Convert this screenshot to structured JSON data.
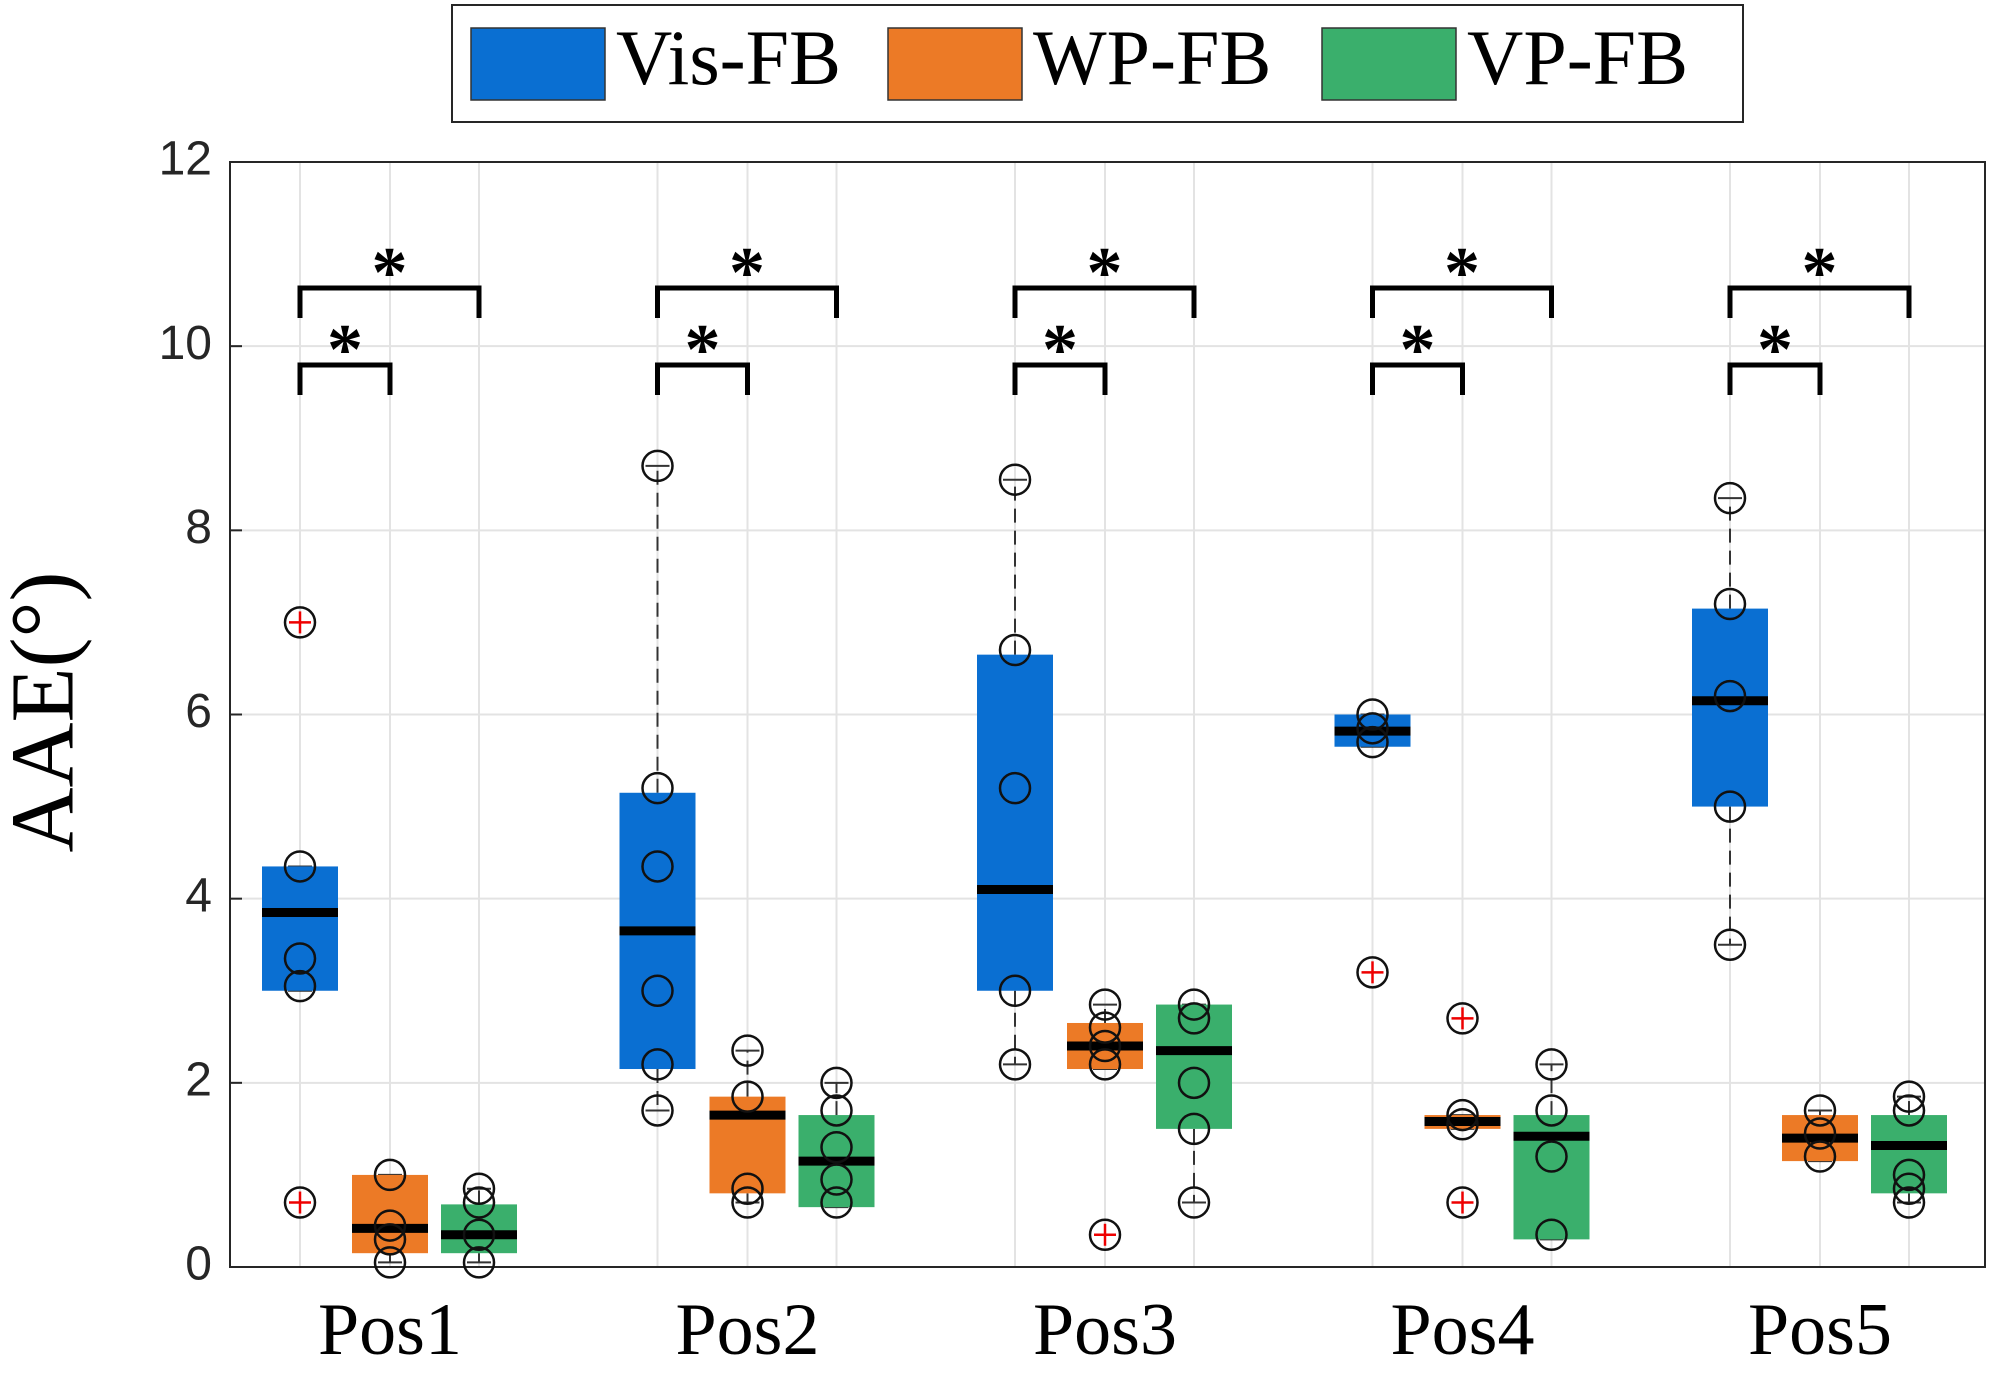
{
  "chart_data": {
    "type": "box",
    "ylabel": "AAE(°)",
    "categories": [
      "Pos1",
      "Pos2",
      "Pos3",
      "Pos4",
      "Pos5"
    ],
    "ylim": [
      0,
      12
    ],
    "yticks": [
      0,
      2,
      4,
      6,
      8,
      10,
      12
    ],
    "grid": true,
    "legend": "top",
    "series": [
      {
        "name": "Vis-FB",
        "color": "#0a6fd2",
        "boxes": [
          {
            "whislo": 3.0,
            "q1": 3.0,
            "median": 3.85,
            "q3": 4.35,
            "whishi": 4.35,
            "outliers": [
              7.0,
              0.7
            ],
            "points": [
              4.35,
              3.35,
              3.05
            ]
          },
          {
            "whislo": 1.7,
            "q1": 2.15,
            "median": 3.65,
            "q3": 5.15,
            "whishi": 8.7,
            "outliers": [],
            "points": [
              8.7,
              5.2,
              4.35,
              3.0,
              2.2,
              1.7
            ]
          },
          {
            "whislo": 2.2,
            "q1": 3.0,
            "median": 4.1,
            "q3": 6.65,
            "whishi": 8.55,
            "outliers": [],
            "points": [
              8.55,
              6.7,
              5.2,
              3.0,
              2.2
            ]
          },
          {
            "whislo": 5.65,
            "q1": 5.65,
            "median": 5.82,
            "q3": 6.0,
            "whishi": 6.0,
            "outliers": [
              3.2
            ],
            "points": [
              6.0,
              5.85,
              5.7
            ]
          },
          {
            "whislo": 3.5,
            "q1": 5.0,
            "median": 6.15,
            "q3": 7.15,
            "whishi": 8.35,
            "outliers": [],
            "points": [
              8.35,
              7.2,
              6.2,
              5.0,
              3.5
            ]
          }
        ]
      },
      {
        "name": "WP-FB",
        "color": "#ec7a26",
        "boxes": [
          {
            "whislo": 0.05,
            "q1": 0.15,
            "median": 0.42,
            "q3": 1.0,
            "whishi": 1.0,
            "outliers": [],
            "points": [
              1.0,
              0.45,
              0.3,
              0.05
            ]
          },
          {
            "whislo": 0.7,
            "q1": 0.8,
            "median": 1.65,
            "q3": 1.85,
            "whishi": 2.35,
            "outliers": [],
            "points": [
              2.35,
              1.85,
              0.85,
              0.7
            ]
          },
          {
            "whislo": 2.15,
            "q1": 2.15,
            "median": 2.4,
            "q3": 2.65,
            "whishi": 2.85,
            "outliers": [
              0.35
            ],
            "points": [
              2.85,
              2.6,
              2.4,
              2.2
            ]
          },
          {
            "whislo": 1.5,
            "q1": 1.5,
            "median": 1.58,
            "q3": 1.65,
            "whishi": 1.65,
            "outliers": [
              2.7,
              0.7
            ],
            "points": [
              1.65,
              1.55
            ]
          },
          {
            "whislo": 1.15,
            "q1": 1.15,
            "median": 1.4,
            "q3": 1.65,
            "whishi": 1.7,
            "outliers": [],
            "points": [
              1.7,
              1.45,
              1.2
            ]
          }
        ]
      },
      {
        "name": "VP-FB",
        "color": "#3aaf6c",
        "boxes": [
          {
            "whislo": 0.05,
            "q1": 0.15,
            "median": 0.35,
            "q3": 0.68,
            "whishi": 0.85,
            "outliers": [],
            "points": [
              0.85,
              0.7,
              0.35,
              0.05
            ]
          },
          {
            "whislo": 0.65,
            "q1": 0.65,
            "median": 1.15,
            "q3": 1.65,
            "whishi": 2.0,
            "outliers": [],
            "points": [
              2.0,
              1.7,
              1.3,
              0.95,
              0.7
            ]
          },
          {
            "whislo": 0.7,
            "q1": 1.5,
            "median": 2.35,
            "q3": 2.85,
            "whishi": 2.85,
            "outliers": [],
            "points": [
              2.85,
              2.7,
              2.0,
              1.5,
              0.7
            ]
          },
          {
            "whislo": 0.3,
            "q1": 0.3,
            "median": 1.42,
            "q3": 1.65,
            "whishi": 2.2,
            "outliers": [],
            "points": [
              2.2,
              1.7,
              1.2,
              0.35
            ]
          },
          {
            "whislo": 0.7,
            "q1": 0.8,
            "median": 1.32,
            "q3": 1.65,
            "whishi": 1.85,
            "outliers": [],
            "points": [
              1.85,
              1.7,
              1.0,
              0.85,
              0.7
            ]
          }
        ]
      }
    ],
    "significance": [
      [
        "*",
        "*"
      ],
      [
        "*",
        "*"
      ],
      [
        "*",
        "*"
      ],
      [
        "*",
        "*"
      ],
      [
        "*",
        "*"
      ]
    ]
  }
}
